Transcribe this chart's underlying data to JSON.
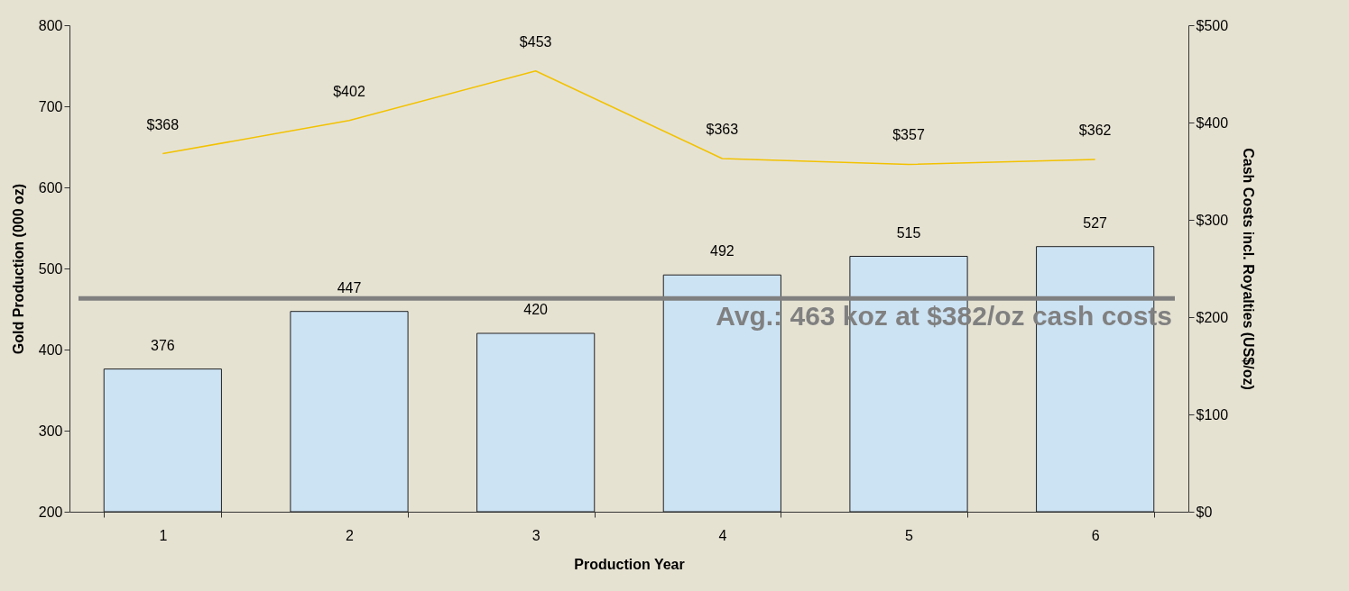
{
  "chart_data": {
    "type": "bar",
    "xlabel": "Production Year",
    "ylabel": "Gold Production (000 oz)",
    "y2label": "Cash Costs incl. Royalties (US$/oz)",
    "categories": [
      "1",
      "2",
      "3",
      "4",
      "5",
      "6"
    ],
    "series": [
      {
        "color": "#cce3f4",
        "values": [
          376,
          447,
          420,
          492,
          515,
          527
        ],
        "value_labels": [
          "376",
          "447",
          "420",
          "492",
          "515",
          "527"
        ]
      },
      {
        "type": "line",
        "axis": "y2",
        "color": "#f2c200",
        "values": [
          368,
          402,
          453,
          363,
          357,
          362
        ],
        "value_labels": [
          "$368",
          "$402",
          "$453",
          "$363",
          "$357",
          "$362"
        ]
      }
    ],
    "ylim": [
      200,
      800
    ],
    "yticks": [
      200,
      300,
      400,
      500,
      600,
      700,
      800
    ],
    "y2lim": [
      0,
      500
    ],
    "y2ticks": [
      {
        "value": 0,
        "label": "$0"
      },
      {
        "value": 100,
        "label": "$100"
      },
      {
        "value": 200,
        "label": "$200"
      },
      {
        "value": 300,
        "label": "$300"
      },
      {
        "value": 400,
        "label": "$400"
      },
      {
        "value": 500,
        "label": "$500"
      }
    ],
    "ref_lines": [
      {
        "axis": "y",
        "value": 463,
        "label": "Avg.: 463 koz at $382/oz cash costs",
        "color": "#808080"
      }
    ],
    "grid": false,
    "legend": false
  }
}
